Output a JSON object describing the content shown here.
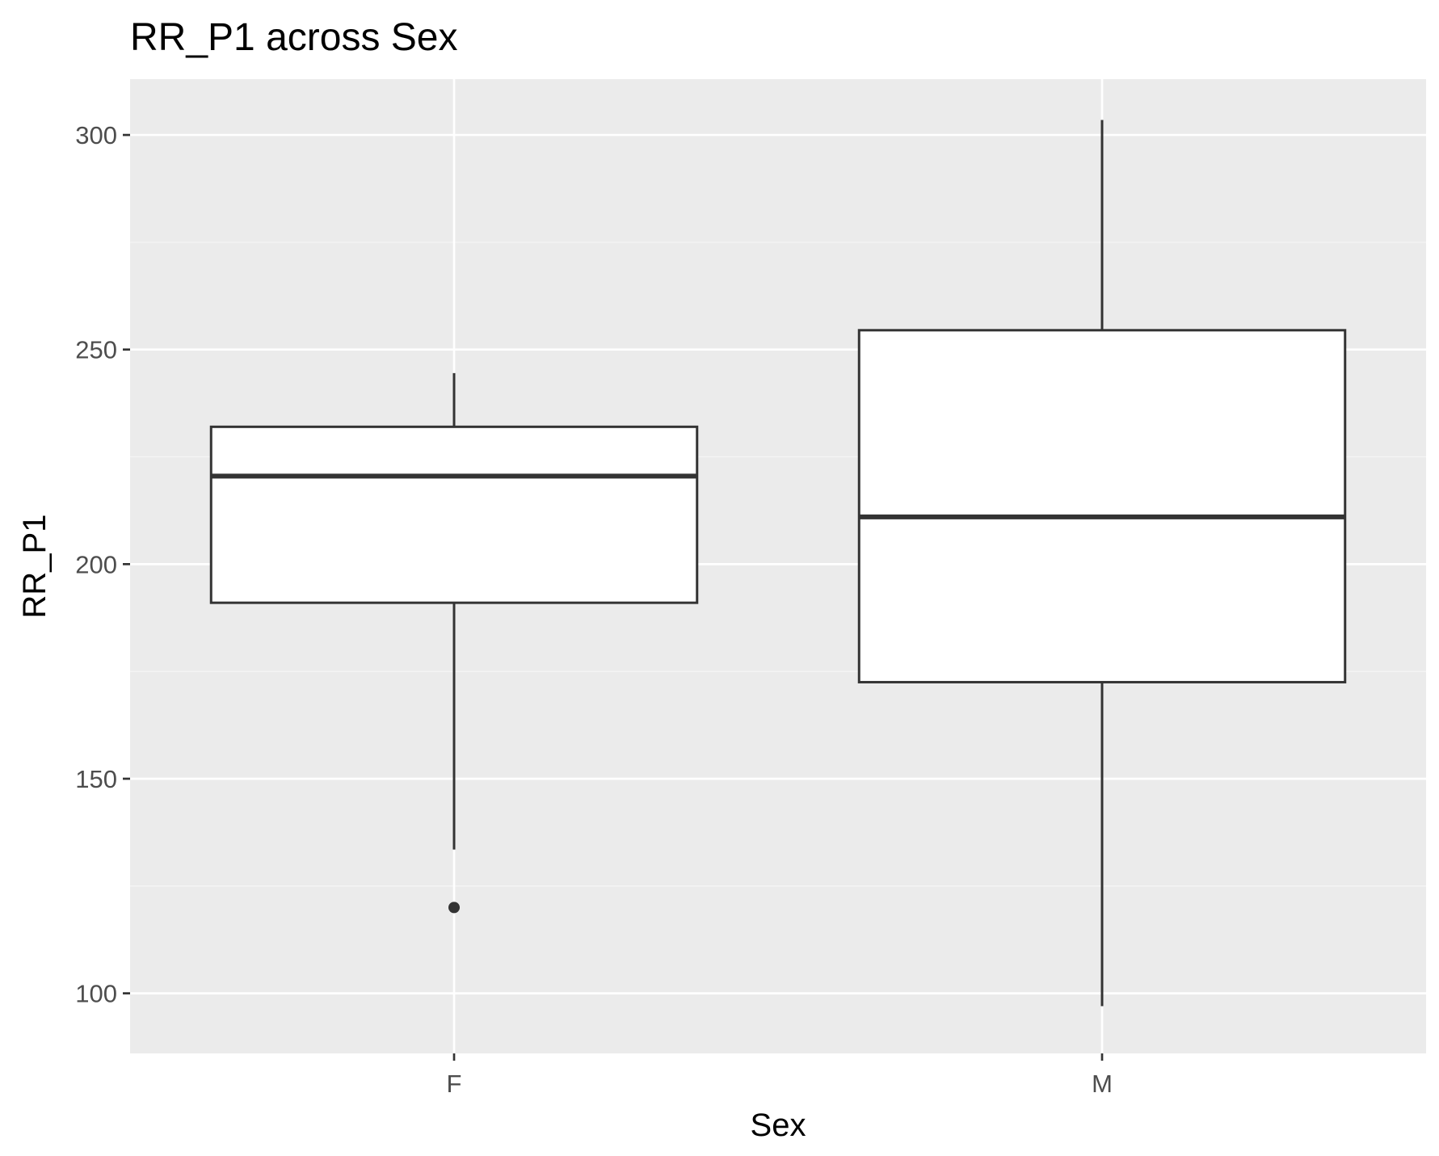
{
  "chart_data": {
    "type": "boxplot",
    "title": "RR_P1 across Sex",
    "xlabel": "Sex",
    "ylabel": "RR_P1",
    "categories": [
      "F",
      "M"
    ],
    "ylim": [
      86,
      313
    ],
    "yticks": [
      100,
      150,
      200,
      250,
      300
    ],
    "ytick_labels": [
      "100",
      "150",
      "200",
      "250",
      "300"
    ],
    "boxes": [
      {
        "category": "F",
        "whisker_low": 133.5,
        "q1": 191,
        "median": 220.5,
        "q3": 232,
        "whisker_high": 244.5,
        "outliers": [
          120
        ]
      },
      {
        "category": "M",
        "whisker_low": 97,
        "q1": 172.5,
        "median": 211,
        "q3": 254.5,
        "whisker_high": 303.5,
        "outliers": []
      }
    ],
    "grid": true,
    "legend": "none",
    "colors": {
      "panel_bg": "#ebebeb",
      "grid_major": "#ffffff",
      "grid_minor": "#f5f5f5",
      "box_fill": "#ffffff",
      "box_line": "#333333",
      "tick_text": "#4d4d4d",
      "title_text": "#000000"
    }
  }
}
